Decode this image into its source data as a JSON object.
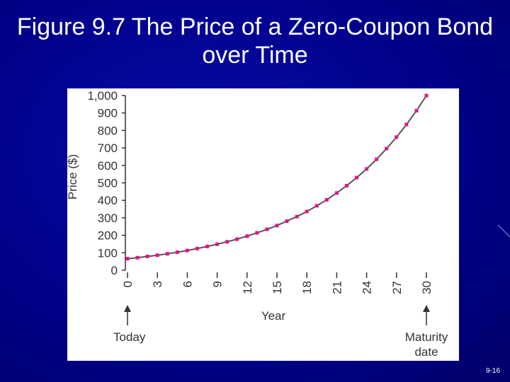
{
  "chart_data": {
    "type": "line",
    "title": "Figure 9.7 The Price of a Zero-Coupon Bond over Time",
    "x_label": "Year",
    "y_label": "Price ($)",
    "x": [
      0,
      1,
      2,
      3,
      4,
      5,
      6,
      7,
      8,
      9,
      10,
      11,
      12,
      13,
      14,
      15,
      16,
      17,
      18,
      19,
      20,
      21,
      22,
      23,
      24,
      25,
      26,
      27,
      28,
      29,
      30
    ],
    "values": [
      66,
      72,
      79,
      86,
      94,
      103,
      113,
      124,
      136,
      149,
      163,
      178,
      195,
      214,
      234,
      256,
      281,
      307,
      336,
      369,
      403,
      442,
      484,
      530,
      580,
      635,
      696,
      762,
      834,
      913,
      1000
    ],
    "color": "#e0168a",
    "line_color": "#555555",
    "xlim": [
      0,
      30
    ],
    "xticks": [
      0,
      3,
      6,
      9,
      12,
      15,
      18,
      21,
      24,
      27,
      30
    ],
    "ylim": [
      0,
      1000
    ],
    "yticks": [
      0,
      100,
      200,
      300,
      400,
      500,
      600,
      700,
      800,
      900,
      {
        "value": 1000,
        "label": "1,000"
      }
    ],
    "annotations": [
      {
        "x": 0,
        "lines": [
          "Today"
        ]
      },
      {
        "x": 30,
        "lines": [
          "Maturity",
          "date"
        ]
      }
    ]
  },
  "page_number": "9-16"
}
